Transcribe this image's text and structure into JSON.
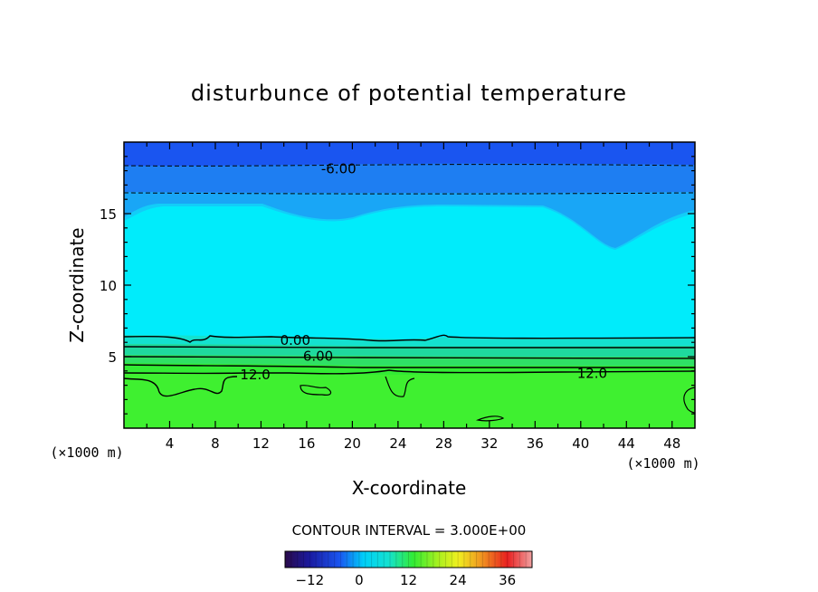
{
  "chart_data": {
    "type": "contour",
    "title": "disturbunce of potential temperature",
    "xlabel": "X-coordinate",
    "ylabel": "Z-coordinate",
    "x_unit_left": "(×1000 m)",
    "x_unit_right": "(×1000 m)",
    "xlim": [
      0,
      50
    ],
    "ylim": [
      0,
      20
    ],
    "xticks": [
      4,
      8,
      12,
      16,
      20,
      24,
      28,
      32,
      36,
      40,
      44,
      48
    ],
    "yticks": [
      5,
      10,
      15
    ],
    "contour_interval_label": "CONTOUR INTERVAL = 3.000E+00",
    "colorbar": {
      "range": [
        -18,
        42
      ],
      "ticks": [
        -12,
        0,
        12,
        24,
        36
      ]
    },
    "contour_labels": [
      {
        "text": "-6.00",
        "x": 18.8,
        "z": 18.2
      },
      {
        "text": "0.00",
        "x": 15.0,
        "z": 6.2
      },
      {
        "text": "6.00",
        "x": 17.0,
        "z": 5.1
      },
      {
        "text": "12.0",
        "x": 11.5,
        "z": 3.8
      },
      {
        "text": "12.0",
        "x": 41.0,
        "z": 3.9
      }
    ],
    "bands_colors": {
      "band_top": "#1a55f0",
      "band_2": "#1e7ef2",
      "band_3": "#19a6f6",
      "band_4": "#12cdf8",
      "core": "#00ecfb",
      "g1": "#14e1cf",
      "g2": "#1fd99e",
      "g3": "#2fe065",
      "g4": "#33ec34",
      "bottom": "#3ff030"
    }
  }
}
